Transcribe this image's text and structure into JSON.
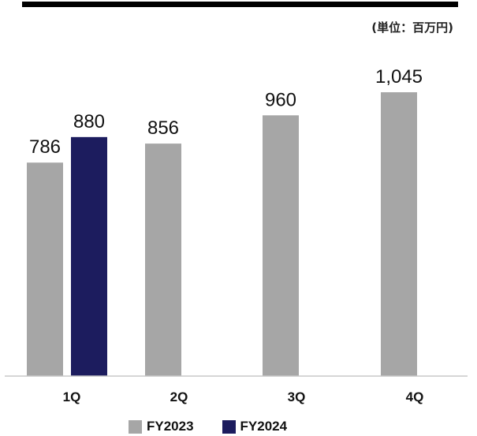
{
  "chart_data": {
    "type": "bar",
    "categories": [
      "1Q",
      "2Q",
      "3Q",
      "4Q"
    ],
    "series": [
      {
        "name": "FY2023",
        "values": [
          786,
          856,
          960,
          1045
        ],
        "labels": [
          "786",
          "856",
          "960",
          "1,045"
        ],
        "color": "#a6a6a6"
      },
      {
        "name": "FY2024",
        "values": [
          880,
          null,
          null,
          null
        ],
        "labels": [
          "880",
          "",
          "",
          ""
        ],
        "color": "#1c1c5e"
      }
    ],
    "unit_note": "(単位：百万円)",
    "title": "",
    "xlabel": "",
    "ylabel": "",
    "ylim": [
      0,
      1045
    ],
    "grid": false,
    "legend_position": "bottom"
  }
}
